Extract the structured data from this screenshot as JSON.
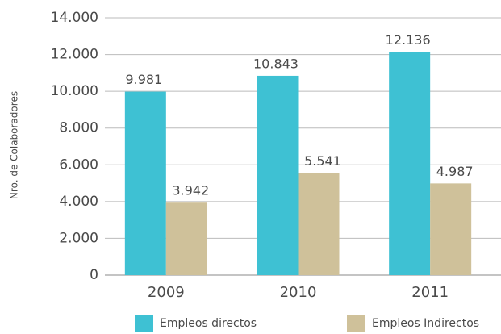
{
  "chart_data": {
    "type": "bar",
    "y_axis_label": "Nro. de Colaboradores",
    "categories": [
      "2009",
      "2010",
      "2011"
    ],
    "series": [
      {
        "name": "Empleos directos",
        "color": "#3ec1d3",
        "values": [
          9981,
          10843,
          12136
        ],
        "value_labels": [
          "9.981",
          "10.843",
          "12.136"
        ]
      },
      {
        "name": "Empleos Indirectos",
        "color": "#cfc19a",
        "values": [
          3942,
          5541,
          4987
        ],
        "value_labels": [
          "3.942",
          "5.541",
          "4.987"
        ]
      }
    ],
    "ylim": [
      0,
      14000
    ],
    "yticks": [
      0,
      {
        "value": 2000,
        "label": "2.000"
      },
      {
        "value": 4000,
        "label": "4.000"
      },
      {
        "value": 6000,
        "label": "6.000"
      },
      {
        "value": 8000,
        "label": "8.000"
      },
      {
        "value": 10000,
        "label": "10.000"
      },
      {
        "value": 12000,
        "label": "12.000"
      },
      {
        "value": 14000,
        "label": "14.000"
      }
    ],
    "grid": true
  }
}
